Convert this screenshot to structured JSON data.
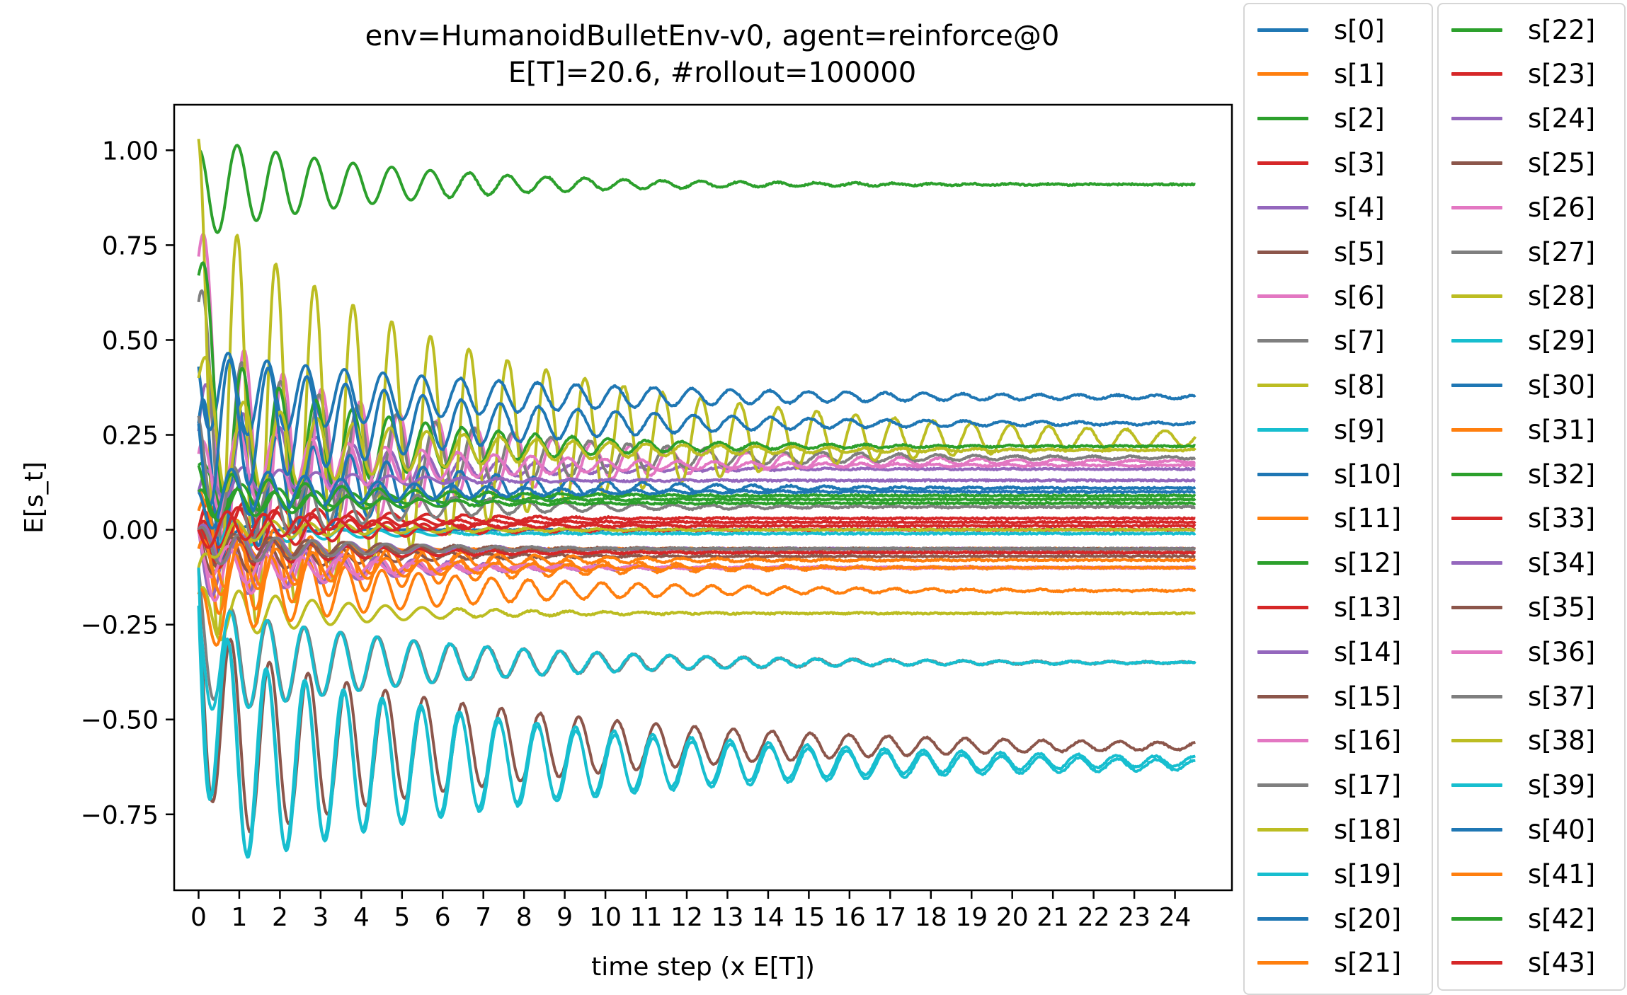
{
  "chart_data": {
    "type": "line",
    "title_line1": "env=HumanoidBulletEnv-v0, agent=reinforce@0",
    "title_line2": "E[T]=20.6, #rollout=100000",
    "xlabel": "time step (x E[T])",
    "ylabel": "E[s_t]",
    "xlim": [
      -0.6,
      25.4
    ],
    "ylim": [
      -0.95,
      1.12
    ],
    "xticks": [
      "0",
      "1",
      "2",
      "3",
      "4",
      "5",
      "6",
      "7",
      "8",
      "9",
      "10",
      "11",
      "12",
      "13",
      "14",
      "15",
      "16",
      "17",
      "18",
      "19",
      "20",
      "21",
      "22",
      "23",
      "24"
    ],
    "yticks": [
      "1.00",
      "0.75",
      "0.50",
      "0.25",
      "0.00",
      "−0.25",
      "−0.50",
      "−0.75"
    ],
    "ytick_values": [
      1.0,
      0.75,
      0.5,
      0.25,
      0.0,
      -0.25,
      -0.5,
      -0.75
    ],
    "x_end": 24.5,
    "grid": false,
    "legend_placement": "outside right, two columns",
    "series": [
      {
        "name": "s[0]",
        "color": "#1f77b4",
        "start": 0.0,
        "final": 0.0,
        "amp": 0.02,
        "period": 1.0,
        "decay": 0.6,
        "phase": 0.0
      },
      {
        "name": "s[1]",
        "color": "#ff7f0e",
        "start": 0.0,
        "final": -0.05,
        "amp": 0.05,
        "period": 0.9,
        "decay": 0.5,
        "phase": 0.5
      },
      {
        "name": "s[2]",
        "color": "#2ca02c",
        "start": 1.0,
        "final": 0.91,
        "amp": 0.13,
        "period": 0.95,
        "decay": 0.22,
        "phase": 1.57
      },
      {
        "name": "s[3]",
        "color": "#d62728",
        "start": 0.0,
        "final": 0.03,
        "amp": 0.06,
        "period": 0.9,
        "decay": 0.3,
        "phase": 0.0
      },
      {
        "name": "s[4]",
        "color": "#9467bd",
        "start": 0.26,
        "final": 0.16,
        "amp": 0.2,
        "period": 0.9,
        "decay": 0.3,
        "phase": 0.2
      },
      {
        "name": "s[5]",
        "color": "#8c564b",
        "start": 0.0,
        "final": -0.06,
        "amp": 0.05,
        "period": 0.9,
        "decay": 0.3,
        "phase": 1.0
      },
      {
        "name": "s[6]",
        "color": "#e377c2",
        "start": 0.72,
        "final": 0.18,
        "amp": 0.35,
        "period": 0.95,
        "decay": 0.2,
        "phase": 0.4
      },
      {
        "name": "s[7]",
        "color": "#7f7f7f",
        "start": 0.6,
        "final": 0.19,
        "amp": 0.3,
        "period": 0.95,
        "decay": 0.2,
        "phase": 0.8
      },
      {
        "name": "s[8]",
        "color": "#bcbd22",
        "start": 1.03,
        "final": 0.24,
        "amp": 0.6,
        "period": 0.95,
        "decay": 0.14,
        "phase": 1.57
      },
      {
        "name": "s[9]",
        "color": "#17becf",
        "start": 0.0,
        "final": -0.01,
        "amp": 0.05,
        "period": 0.9,
        "decay": 0.4,
        "phase": 2.0
      },
      {
        "name": "s[10]",
        "color": "#1f77b4",
        "start": 0.43,
        "final": 0.35,
        "amp": 0.12,
        "period": 0.95,
        "decay": 0.14,
        "phase": 3.0
      },
      {
        "name": "s[11]",
        "color": "#ff7f0e",
        "start": 0.1,
        "final": -0.1,
        "amp": 0.15,
        "period": 0.9,
        "decay": 0.22,
        "phase": 1.2
      },
      {
        "name": "s[12]",
        "color": "#2ca02c",
        "start": 0.67,
        "final": 0.22,
        "amp": 0.25,
        "period": 0.9,
        "decay": 0.25,
        "phase": 0.3
      },
      {
        "name": "s[13]",
        "color": "#d62728",
        "start": 0.0,
        "final": 0.0,
        "amp": 0.08,
        "period": 0.9,
        "decay": 0.3,
        "phase": 0.6
      },
      {
        "name": "s[14]",
        "color": "#9467bd",
        "start": 0.0,
        "final": -0.1,
        "amp": 0.1,
        "period": 0.9,
        "decay": 0.3,
        "phase": 2.5
      },
      {
        "name": "s[15]",
        "color": "#8c564b",
        "start": -0.1,
        "final": -0.57,
        "amp": 0.28,
        "period": 0.95,
        "decay": 0.14,
        "phase": 2.6
      },
      {
        "name": "s[16]",
        "color": "#e377c2",
        "start": 0.0,
        "final": -0.1,
        "amp": 0.1,
        "period": 0.9,
        "decay": 0.3,
        "phase": 1.9
      },
      {
        "name": "s[17]",
        "color": "#7f7f7f",
        "start": -0.1,
        "final": -0.35,
        "amp": 0.15,
        "period": 0.9,
        "decay": 0.18,
        "phase": 2.2
      },
      {
        "name": "s[18]",
        "color": "#bcbd22",
        "start": -0.17,
        "final": -0.22,
        "amp": 0.08,
        "period": 0.9,
        "decay": 0.3,
        "phase": 0.9
      },
      {
        "name": "s[19]",
        "color": "#17becf",
        "start": -0.2,
        "final": -0.61,
        "amp": 0.3,
        "period": 0.95,
        "decay": 0.13,
        "phase": 3.14
      },
      {
        "name": "s[20]",
        "color": "#1f77b4",
        "start": 0.28,
        "final": 0.11,
        "amp": 0.22,
        "period": 0.9,
        "decay": 0.25,
        "phase": 0.7
      },
      {
        "name": "s[21]",
        "color": "#ff7f0e",
        "start": -0.17,
        "final": -0.16,
        "amp": 0.12,
        "period": 0.9,
        "decay": 0.18,
        "phase": 1.5
      },
      {
        "name": "s[22]",
        "color": "#2ca02c",
        "start": 0.17,
        "final": 0.08,
        "amp": 0.05,
        "period": 0.9,
        "decay": 0.3,
        "phase": 0.4
      },
      {
        "name": "s[23]",
        "color": "#d62728",
        "start": 0.0,
        "final": 0.02,
        "amp": 0.06,
        "period": 0.9,
        "decay": 0.35,
        "phase": 1.1
      },
      {
        "name": "s[24]",
        "color": "#9467bd",
        "start": 0.1,
        "final": 0.13,
        "amp": 0.05,
        "period": 0.9,
        "decay": 0.3,
        "phase": 0.2
      },
      {
        "name": "s[25]",
        "color": "#8c564b",
        "start": 0.0,
        "final": -0.07,
        "amp": 0.06,
        "period": 0.9,
        "decay": 0.3,
        "phase": 2.3
      },
      {
        "name": "s[26]",
        "color": "#e377c2",
        "start": 0.2,
        "final": 0.17,
        "amp": 0.12,
        "period": 0.9,
        "decay": 0.2,
        "phase": 1.0
      },
      {
        "name": "s[27]",
        "color": "#7f7f7f",
        "start": 0.3,
        "final": 0.06,
        "amp": 0.12,
        "period": 0.9,
        "decay": 0.25,
        "phase": 1.7
      },
      {
        "name": "s[28]",
        "color": "#bcbd22",
        "start": 0.4,
        "final": 0.21,
        "amp": 0.15,
        "period": 0.9,
        "decay": 0.2,
        "phase": 0.1
      },
      {
        "name": "s[29]",
        "color": "#17becf",
        "start": -0.2,
        "final": -0.35,
        "amp": 0.15,
        "period": 0.9,
        "decay": 0.18,
        "phase": 2.4
      },
      {
        "name": "s[30]",
        "color": "#1f77b4",
        "start": 0.28,
        "final": 0.28,
        "amp": 0.2,
        "period": 0.95,
        "decay": 0.18,
        "phase": 2.8
      },
      {
        "name": "s[31]",
        "color": "#ff7f0e",
        "start": 0.05,
        "final": -0.08,
        "amp": 0.1,
        "period": 0.9,
        "decay": 0.25,
        "phase": 0.3
      },
      {
        "name": "s[32]",
        "color": "#2ca02c",
        "start": 0.17,
        "final": 0.09,
        "amp": 0.07,
        "period": 0.9,
        "decay": 0.3,
        "phase": 2.1
      },
      {
        "name": "s[33]",
        "color": "#d62728",
        "start": 0.0,
        "final": -0.06,
        "amp": 0.05,
        "period": 0.9,
        "decay": 0.3,
        "phase": 1.3
      },
      {
        "name": "s[34]",
        "color": "#9467bd",
        "start": 0.0,
        "final": -0.05,
        "amp": 0.05,
        "period": 0.9,
        "decay": 0.3,
        "phase": 0.6
      },
      {
        "name": "s[35]",
        "color": "#8c564b",
        "start": 0.0,
        "final": -0.05,
        "amp": 0.05,
        "period": 0.9,
        "decay": 0.3,
        "phase": 1.8
      },
      {
        "name": "s[36]",
        "color": "#e377c2",
        "start": 0.0,
        "final": -0.1,
        "amp": 0.06,
        "period": 0.9,
        "decay": 0.3,
        "phase": 2.7
      },
      {
        "name": "s[37]",
        "color": "#7f7f7f",
        "start": 0.0,
        "final": -0.05,
        "amp": 0.05,
        "period": 0.9,
        "decay": 0.3,
        "phase": 0.9
      },
      {
        "name": "s[38]",
        "color": "#bcbd22",
        "start": -0.1,
        "final": 0.0,
        "amp": 0.04,
        "period": 0.9,
        "decay": 0.3,
        "phase": 1.4
      },
      {
        "name": "s[39]",
        "color": "#17becf",
        "start": -0.1,
        "final": -0.62,
        "amp": 0.3,
        "period": 0.95,
        "decay": 0.13,
        "phase": 3.0
      },
      {
        "name": "s[40]",
        "color": "#1f77b4",
        "start": 0.1,
        "final": 0.1,
        "amp": 0.08,
        "period": 0.9,
        "decay": 0.25,
        "phase": 2.2
      },
      {
        "name": "s[41]",
        "color": "#ff7f0e",
        "start": -0.05,
        "final": -0.1,
        "amp": 0.08,
        "period": 0.9,
        "decay": 0.25,
        "phase": 0.8
      },
      {
        "name": "s[42]",
        "color": "#2ca02c",
        "start": 0.1,
        "final": 0.07,
        "amp": 0.05,
        "period": 0.9,
        "decay": 0.3,
        "phase": 1.2
      },
      {
        "name": "s[43]",
        "color": "#d62728",
        "start": 0.0,
        "final": 0.01,
        "amp": 0.05,
        "period": 0.9,
        "decay": 0.3,
        "phase": 2.9
      }
    ]
  }
}
